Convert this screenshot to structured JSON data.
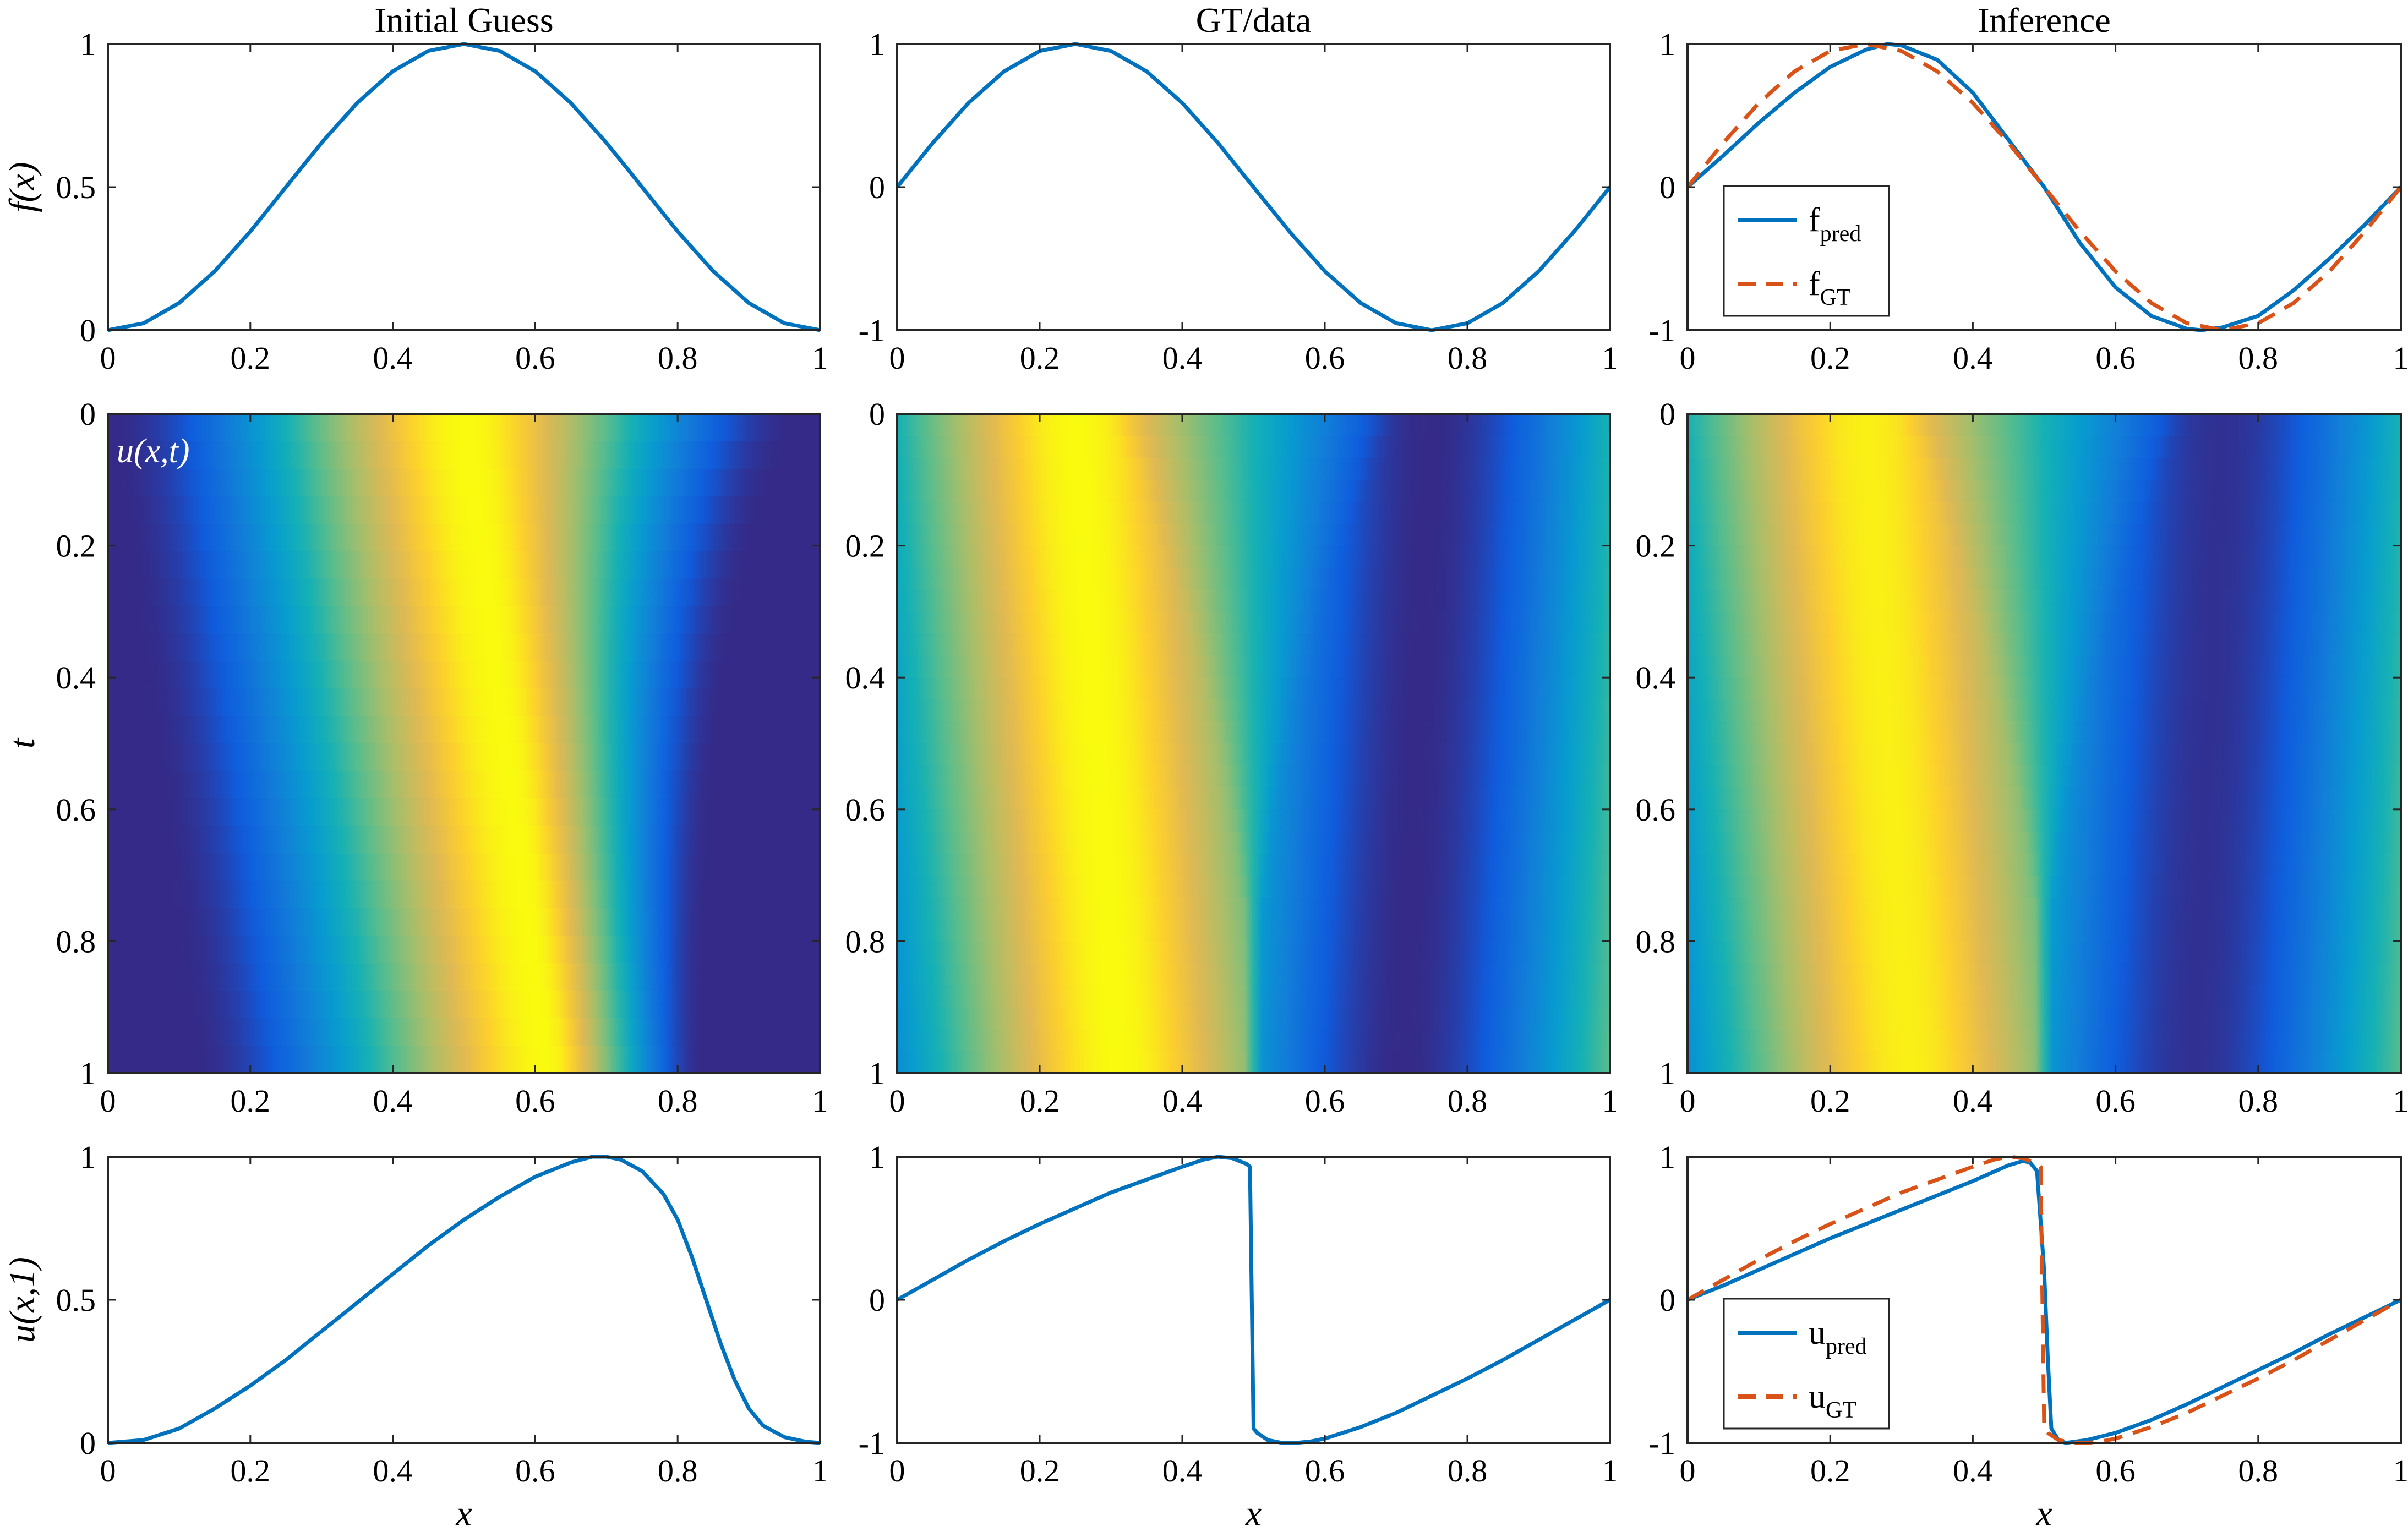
{
  "chart_data": [
    {
      "id": "top-left",
      "type": "line",
      "title": "Initial Guess",
      "xlabel": "",
      "ylabel": "f(x)",
      "xlim": [
        0,
        1
      ],
      "ylim": [
        0,
        1
      ],
      "xticks": [
        "0",
        "0.2",
        "0.4",
        "0.6",
        "0.8",
        "1"
      ],
      "yticks": [
        "0",
        "0.5",
        "1"
      ],
      "series": [
        {
          "color": "#0072BD",
          "style": "solid",
          "x": [
            0,
            0.05,
            0.1,
            0.15,
            0.2,
            0.25,
            0.3,
            0.35,
            0.4,
            0.45,
            0.5,
            0.55,
            0.6,
            0.65,
            0.7,
            0.75,
            0.8,
            0.85,
            0.9,
            0.95,
            1
          ],
          "y": [
            0,
            0.024,
            0.095,
            0.206,
            0.345,
            0.5,
            0.655,
            0.794,
            0.905,
            0.976,
            1,
            0.976,
            0.905,
            0.794,
            0.655,
            0.5,
            0.345,
            0.206,
            0.095,
            0.024,
            0
          ]
        }
      ]
    },
    {
      "id": "top-mid",
      "type": "line",
      "title": "GT/data",
      "xlabel": "",
      "ylabel": "",
      "xlim": [
        0,
        1
      ],
      "ylim": [
        -1,
        1
      ],
      "xticks": [
        "0",
        "0.2",
        "0.4",
        "0.6",
        "0.8",
        "1"
      ],
      "yticks": [
        "-1",
        "0",
        "1"
      ],
      "series": [
        {
          "color": "#0072BD",
          "style": "solid",
          "x": [
            0,
            0.05,
            0.1,
            0.15,
            0.2,
            0.25,
            0.3,
            0.35,
            0.4,
            0.45,
            0.5,
            0.55,
            0.6,
            0.65,
            0.7,
            0.75,
            0.8,
            0.85,
            0.9,
            0.95,
            1
          ],
          "y": [
            0,
            0.309,
            0.588,
            0.809,
            0.951,
            1,
            0.951,
            0.809,
            0.588,
            0.309,
            0,
            -0.309,
            -0.588,
            -0.809,
            -0.951,
            -1,
            -0.951,
            -0.809,
            -0.588,
            -0.309,
            0
          ]
        }
      ]
    },
    {
      "id": "top-right",
      "type": "line",
      "title": "Inference",
      "xlabel": "",
      "ylabel": "",
      "xlim": [
        0,
        1
      ],
      "ylim": [
        -1,
        1
      ],
      "xticks": [
        "0",
        "0.2",
        "0.4",
        "0.6",
        "0.8",
        "1"
      ],
      "yticks": [
        "-1",
        "0",
        "1"
      ],
      "legend": {
        "position": "bottom-left",
        "entries": [
          {
            "base": "f",
            "sub": "pred",
            "color": "#0072BD",
            "style": "solid"
          },
          {
            "base": "f",
            "sub": "GT",
            "color": "#D95319",
            "style": "dashed"
          }
        ]
      },
      "series": [
        {
          "name": "fpred",
          "color": "#0072BD",
          "style": "solid",
          "x": [
            0,
            0.05,
            0.1,
            0.15,
            0.2,
            0.25,
            0.28,
            0.3,
            0.35,
            0.4,
            0.45,
            0.5,
            0.55,
            0.6,
            0.65,
            0.7,
            0.72,
            0.75,
            0.8,
            0.85,
            0.9,
            0.95,
            1
          ],
          "y": [
            0,
            0.22,
            0.45,
            0.66,
            0.84,
            0.96,
            1,
            0.99,
            0.89,
            0.66,
            0.33,
            0,
            -0.39,
            -0.7,
            -0.9,
            -0.99,
            -1,
            -0.98,
            -0.9,
            -0.72,
            -0.5,
            -0.26,
            0
          ]
        },
        {
          "name": "fGT",
          "color": "#D95319",
          "style": "dashed",
          "x": [
            0,
            0.05,
            0.1,
            0.15,
            0.2,
            0.25,
            0.3,
            0.35,
            0.4,
            0.45,
            0.5,
            0.55,
            0.6,
            0.65,
            0.7,
            0.75,
            0.8,
            0.85,
            0.9,
            0.95,
            1
          ],
          "y": [
            0,
            0.309,
            0.588,
            0.809,
            0.951,
            1,
            0.951,
            0.809,
            0.588,
            0.309,
            0,
            -0.309,
            -0.588,
            -0.809,
            -0.951,
            -1,
            -0.951,
            -0.809,
            -0.588,
            -0.309,
            0
          ]
        }
      ]
    },
    {
      "id": "mid-left",
      "type": "heatmap",
      "title": "",
      "xlabel": "",
      "ylabel": "t",
      "xlim": [
        0,
        1
      ],
      "ylim": [
        0,
        1
      ],
      "y_reversed": true,
      "xticks": [
        "0",
        "0.2",
        "0.4",
        "0.6",
        "0.8",
        "1"
      ],
      "yticks": [
        "0",
        "0.2",
        "0.4",
        "0.6",
        "0.8",
        "1"
      ],
      "annotation": "u(x,t)",
      "colormap": "parula",
      "clim": [
        0,
        1
      ],
      "field": "initial_guess_transport"
    },
    {
      "id": "mid-mid",
      "type": "heatmap",
      "title": "",
      "xlabel": "",
      "ylabel": "",
      "xlim": [
        0,
        1
      ],
      "ylim": [
        0,
        1
      ],
      "y_reversed": true,
      "xticks": [
        "0",
        "0.2",
        "0.4",
        "0.6",
        "0.8",
        "1"
      ],
      "yticks": [
        "0",
        "0.2",
        "0.4",
        "0.6",
        "0.8",
        "1"
      ],
      "colormap": "parula",
      "clim": [
        -1,
        1
      ],
      "shock_x": 0.5,
      "field": "gt_burgers_shock"
    },
    {
      "id": "mid-right",
      "type": "heatmap",
      "title": "",
      "xlabel": "",
      "ylabel": "",
      "xlim": [
        0,
        1
      ],
      "ylim": [
        0,
        1
      ],
      "y_reversed": true,
      "xticks": [
        "0",
        "0.2",
        "0.4",
        "0.6",
        "0.8",
        "1"
      ],
      "yticks": [
        "0",
        "0.2",
        "0.4",
        "0.6",
        "0.8",
        "1"
      ],
      "colormap": "parula",
      "clim": [
        -1,
        1
      ],
      "shock_x": 0.5,
      "field": "inferred_burgers_shock"
    },
    {
      "id": "bot-left",
      "type": "line",
      "title": "",
      "xlabel": "x",
      "ylabel": "u(x,1)",
      "xlim": [
        0,
        1
      ],
      "ylim": [
        0,
        1
      ],
      "xticks": [
        "0",
        "0.2",
        "0.4",
        "0.6",
        "0.8",
        "1"
      ],
      "yticks": [
        "0",
        "0.5",
        "1"
      ],
      "series": [
        {
          "color": "#0072BD",
          "style": "solid",
          "x": [
            0,
            0.05,
            0.1,
            0.15,
            0.2,
            0.25,
            0.3,
            0.35,
            0.4,
            0.45,
            0.5,
            0.55,
            0.6,
            0.65,
            0.68,
            0.7,
            0.72,
            0.75,
            0.78,
            0.8,
            0.82,
            0.84,
            0.86,
            0.88,
            0.9,
            0.92,
            0.95,
            0.98,
            1
          ],
          "y": [
            0,
            0.01,
            0.05,
            0.12,
            0.2,
            0.29,
            0.39,
            0.49,
            0.59,
            0.69,
            0.78,
            0.86,
            0.93,
            0.98,
            1,
            1,
            0.99,
            0.95,
            0.87,
            0.78,
            0.65,
            0.5,
            0.35,
            0.22,
            0.12,
            0.06,
            0.02,
            0.004,
            0
          ]
        }
      ]
    },
    {
      "id": "bot-mid",
      "type": "line",
      "title": "",
      "xlabel": "x",
      "ylabel": "",
      "xlim": [
        0,
        1
      ],
      "ylim": [
        -1,
        1
      ],
      "xticks": [
        "0",
        "0.2",
        "0.4",
        "0.6",
        "0.8",
        "1"
      ],
      "yticks": [
        "-1",
        "0",
        "1"
      ],
      "series": [
        {
          "color": "#0072BD",
          "style": "solid",
          "x": [
            0,
            0.05,
            0.1,
            0.15,
            0.2,
            0.25,
            0.3,
            0.35,
            0.4,
            0.43,
            0.45,
            0.47,
            0.49,
            0.495,
            0.5,
            0.505,
            0.52,
            0.54,
            0.56,
            0.58,
            0.6,
            0.65,
            0.7,
            0.75,
            0.8,
            0.85,
            0.9,
            0.95,
            1
          ],
          "y": [
            0,
            0.14,
            0.28,
            0.41,
            0.53,
            0.64,
            0.75,
            0.84,
            0.93,
            0.98,
            1,
            0.99,
            0.95,
            0.93,
            -0.9,
            -0.93,
            -0.98,
            -1,
            -1,
            -0.99,
            -0.97,
            -0.89,
            -0.79,
            -0.67,
            -0.55,
            -0.42,
            -0.28,
            -0.14,
            0
          ]
        }
      ]
    },
    {
      "id": "bot-right",
      "type": "line",
      "title": "",
      "xlabel": "x",
      "ylabel": "",
      "xlim": [
        0,
        1
      ],
      "ylim": [
        -1,
        1
      ],
      "xticks": [
        "0",
        "0.2",
        "0.4",
        "0.6",
        "0.8",
        "1"
      ],
      "yticks": [
        "-1",
        "0",
        "1"
      ],
      "legend": {
        "position": "bottom-left",
        "entries": [
          {
            "base": "u",
            "sub": "pred",
            "color": "#0072BD",
            "style": "solid"
          },
          {
            "base": "u",
            "sub": "GT",
            "color": "#D95319",
            "style": "dashed"
          }
        ]
      },
      "series": [
        {
          "name": "upred",
          "color": "#0072BD",
          "style": "solid",
          "x": [
            0,
            0.05,
            0.1,
            0.15,
            0.2,
            0.25,
            0.3,
            0.35,
            0.4,
            0.45,
            0.47,
            0.48,
            0.49,
            0.5,
            0.505,
            0.51,
            0.52,
            0.53,
            0.56,
            0.6,
            0.65,
            0.7,
            0.75,
            0.8,
            0.85,
            0.9,
            0.95,
            1
          ],
          "y": [
            0,
            0.1,
            0.21,
            0.32,
            0.43,
            0.53,
            0.63,
            0.73,
            0.83,
            0.94,
            0.97,
            0.96,
            0.9,
            0.2,
            -0.4,
            -0.9,
            -0.98,
            -1,
            -0.98,
            -0.93,
            -0.84,
            -0.73,
            -0.61,
            -0.49,
            -0.37,
            -0.24,
            -0.12,
            0
          ]
        },
        {
          "name": "uGT",
          "color": "#D95319",
          "style": "dashed",
          "x": [
            0,
            0.05,
            0.1,
            0.15,
            0.2,
            0.25,
            0.3,
            0.35,
            0.4,
            0.43,
            0.45,
            0.47,
            0.49,
            0.495,
            0.5,
            0.505,
            0.52,
            0.54,
            0.56,
            0.58,
            0.6,
            0.65,
            0.7,
            0.75,
            0.8,
            0.85,
            0.9,
            0.95,
            1
          ],
          "y": [
            0,
            0.14,
            0.28,
            0.41,
            0.53,
            0.64,
            0.75,
            0.84,
            0.93,
            0.98,
            1,
            0.99,
            0.95,
            0.93,
            -0.9,
            -0.93,
            -0.98,
            -1,
            -1,
            -0.99,
            -0.97,
            -0.89,
            -0.79,
            -0.67,
            -0.55,
            -0.42,
            -0.28,
            -0.14,
            0
          ]
        }
      ]
    }
  ]
}
